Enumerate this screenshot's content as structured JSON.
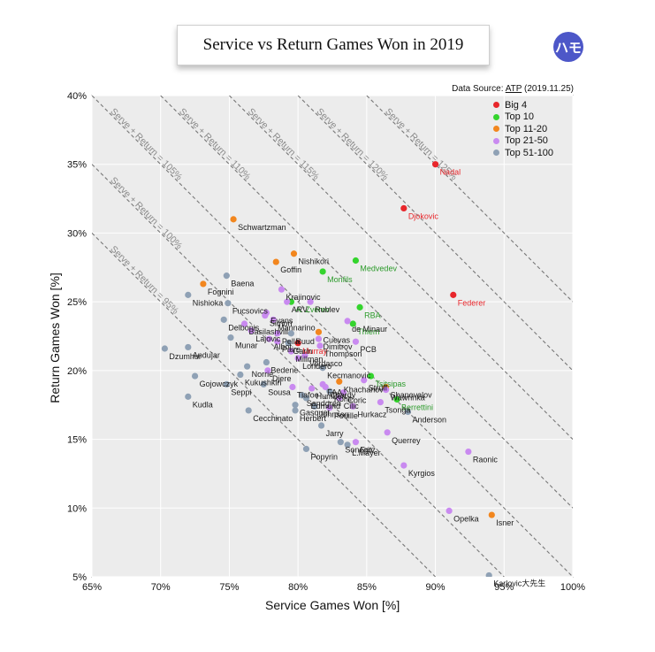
{
  "logo_text": "ハモ",
  "source": {
    "prefix": "Data Source:",
    "name": "ATP",
    "date": "(2019.11.25)"
  },
  "colors": {
    "Big 4": "#e8262b",
    "Top 10": "#34d42d",
    "Top 11-20": "#f2861e",
    "Top 21-50": "#c98af0",
    "Top 51-100": "#8fa1b5"
  },
  "chart_data": {
    "type": "scatter",
    "title": "Service vs Return Games Won in 2019",
    "xlabel": "Service Games Won [%]",
    "ylabel": "Return Games Won [%]",
    "xlim": [
      65,
      100
    ],
    "ylim": [
      5,
      40
    ],
    "xticks": [
      "65%",
      "70%",
      "75%",
      "80%",
      "85%",
      "90%",
      "95%",
      "100%"
    ],
    "yticks": [
      "5%",
      "10%",
      "15%",
      "20%",
      "25%",
      "30%",
      "35%",
      "40%"
    ],
    "grid": true,
    "legend": [
      "Big 4",
      "Top 10",
      "Top 11-20",
      "Top 21-50",
      "Top 51-100"
    ],
    "legend_position": "top-right",
    "diagonals": [
      {
        "sum": 95,
        "label": "Serve + Return = 95%"
      },
      {
        "sum": 100,
        "label": "Serve + Return = 100%"
      },
      {
        "sum": 105,
        "label": "Serve + Return = 105%"
      },
      {
        "sum": 110,
        "label": "Serve + Return = 110%"
      },
      {
        "sum": 115,
        "label": "Serve + Return = 115%"
      },
      {
        "sum": 120,
        "label": "Serve + Return = 120%"
      },
      {
        "sum": 125,
        "label": "Serve + Return = 125%"
      }
    ],
    "points": [
      {
        "name": "Nadal",
        "x": 90.0,
        "y": 35.0,
        "group": "Big 4"
      },
      {
        "name": "Djokovic",
        "x": 87.7,
        "y": 31.8,
        "group": "Big 4"
      },
      {
        "name": "Federer",
        "x": 91.3,
        "y": 25.5,
        "group": "Big 4"
      },
      {
        "name": "Murray",
        "x": 80.0,
        "y": 22.0,
        "group": "Big 4"
      },
      {
        "name": "Medvedev",
        "x": 84.2,
        "y": 28.0,
        "group": "Top 10"
      },
      {
        "name": "Monfils",
        "x": 81.8,
        "y": 27.2,
        "group": "Top 10"
      },
      {
        "name": "A. Zverev",
        "x": 79.5,
        "y": 25.0,
        "group": "Top 10"
      },
      {
        "name": "RBA",
        "x": 84.5,
        "y": 24.6,
        "group": "Top 10"
      },
      {
        "name": "Thiem",
        "x": 84.0,
        "y": 23.4,
        "group": "Top 10"
      },
      {
        "name": "Tsitsipas",
        "x": 85.3,
        "y": 19.6,
        "group": "Top 10"
      },
      {
        "name": "Berrettini",
        "x": 87.2,
        "y": 17.9,
        "group": "Top 10"
      },
      {
        "name": "Schwartzman",
        "x": 75.3,
        "y": 31.0,
        "group": "Top 11-20"
      },
      {
        "name": "Nishikori",
        "x": 79.7,
        "y": 28.5,
        "group": "Top 11-20"
      },
      {
        "name": "Goffin",
        "x": 78.4,
        "y": 27.9,
        "group": "Top 11-20"
      },
      {
        "name": "Fognini",
        "x": 73.1,
        "y": 26.3,
        "group": "Top 11-20"
      },
      {
        "name": "Isner",
        "x": 94.1,
        "y": 9.5,
        "group": "Top 11-20"
      },
      {
        "name": "Shapovalov",
        "x": 86.4,
        "y": 18.8,
        "group": "Top 11-20"
      },
      {
        "name": "Cuevas",
        "x": 81.5,
        "y": 22.8,
        "group": "Top 11-20"
      },
      {
        "name": "Khachanov",
        "x": 83.0,
        "y": 19.2,
        "group": "Top 11-20"
      },
      {
        "name": "Krajinovic",
        "x": 78.8,
        "y": 25.9,
        "group": "Top 21-50"
      },
      {
        "name": "ARV",
        "x": 79.2,
        "y": 25.0,
        "group": "Top 21-50"
      },
      {
        "name": "Rublev",
        "x": 80.9,
        "y": 25.0,
        "group": "Top 21-50"
      },
      {
        "name": "Evans",
        "x": 77.7,
        "y": 24.2,
        "group": "Top 21-50"
      },
      {
        "name": "Simon",
        "x": 77.6,
        "y": 24.0,
        "group": "Top 21-50"
      },
      {
        "name": "Mannarino",
        "x": 78.2,
        "y": 23.7,
        "group": "Top 21-50"
      },
      {
        "name": "de Minaur",
        "x": 83.6,
        "y": 23.6,
        "group": "Top 21-50"
      },
      {
        "name": "Basilashvili",
        "x": 76.1,
        "y": 23.4,
        "group": "Top 21-50"
      },
      {
        "name": "Lajovic",
        "x": 76.6,
        "y": 22.9,
        "group": "Top 21-50"
      },
      {
        "name": "Pella",
        "x": 78.5,
        "y": 22.7,
        "group": "Top 21-50"
      },
      {
        "name": "Albot",
        "x": 77.9,
        "y": 22.3,
        "group": "Top 21-50"
      },
      {
        "name": "Paire",
        "x": 78.5,
        "y": 22.1,
        "group": "Top 21-50"
      },
      {
        "name": "Dimitrov",
        "x": 81.5,
        "y": 22.3,
        "group": "Top 21-50"
      },
      {
        "name": "Thompson",
        "x": 81.6,
        "y": 21.8,
        "group": "Top 21-50"
      },
      {
        "name": "PCB",
        "x": 84.2,
        "y": 22.1,
        "group": "Top 21-50"
      },
      {
        "name": "Millman",
        "x": 79.5,
        "y": 21.4,
        "group": "Top 21-50"
      },
      {
        "name": "Verdasco",
        "x": 80.5,
        "y": 21.1,
        "group": "Top 21-50"
      },
      {
        "name": "Londero",
        "x": 80.0,
        "y": 20.9,
        "group": "Top 21-50"
      },
      {
        "name": "Djere",
        "x": 77.8,
        "y": 20.0,
        "group": "Top 21-50"
      },
      {
        "name": "FAA",
        "x": 81.8,
        "y": 19.0,
        "group": "Top 21-50"
      },
      {
        "name": "Struff",
        "x": 84.8,
        "y": 19.3,
        "group": "Top 21-50"
      },
      {
        "name": "Humbert",
        "x": 81.0,
        "y": 18.7,
        "group": "Top 21-50"
      },
      {
        "name": "Chardy",
        "x": 82.0,
        "y": 18.8,
        "group": "Top 21-50"
      },
      {
        "name": "Coric",
        "x": 83.3,
        "y": 18.4,
        "group": "Top 21-50"
      },
      {
        "name": "Wawrinka",
        "x": 86.4,
        "y": 18.6,
        "group": "Top 21-50"
      },
      {
        "name": "Cilic",
        "x": 83.0,
        "y": 18.0,
        "group": "Top 21-50"
      },
      {
        "name": "Tsonga",
        "x": 86.0,
        "y": 17.7,
        "group": "Top 21-50"
      },
      {
        "name": "Hurkacz",
        "x": 84.0,
        "y": 17.4,
        "group": "Top 21-50"
      },
      {
        "name": "Pouille",
        "x": 82.3,
        "y": 17.3,
        "group": "Top 21-50"
      },
      {
        "name": "Tiafoe",
        "x": 79.6,
        "y": 18.8,
        "group": "Top 21-50"
      },
      {
        "name": "Querrey",
        "x": 86.5,
        "y": 15.5,
        "group": "Top 21-50"
      },
      {
        "name": "Fritz",
        "x": 84.2,
        "y": 14.8,
        "group": "Top 21-50"
      },
      {
        "name": "Kyrgios",
        "x": 87.7,
        "y": 13.1,
        "group": "Top 21-50"
      },
      {
        "name": "Raonic",
        "x": 92.4,
        "y": 14.1,
        "group": "Top 21-50"
      },
      {
        "name": "Opelka",
        "x": 91.0,
        "y": 9.8,
        "group": "Top 21-50"
      },
      {
        "name": "Baena",
        "x": 74.8,
        "y": 26.9,
        "group": "Top 51-100"
      },
      {
        "name": "Nishioka",
        "x": 72.0,
        "y": 25.5,
        "group": "Top 51-100"
      },
      {
        "name": "Fucsovics",
        "x": 74.9,
        "y": 24.9,
        "group": "Top 51-100"
      },
      {
        "name": "Delbonis",
        "x": 74.6,
        "y": 23.7,
        "group": "Top 51-100"
      },
      {
        "name": "Munar",
        "x": 75.1,
        "y": 22.4,
        "group": "Top 51-100"
      },
      {
        "name": "Ruud",
        "x": 79.5,
        "y": 22.7,
        "group": "Top 51-100"
      },
      {
        "name": "Garin",
        "x": 79.3,
        "y": 22.0,
        "group": "Top 51-100"
      },
      {
        "name": "Dzumhur",
        "x": 70.3,
        "y": 21.6,
        "group": "Top 51-100"
      },
      {
        "name": "Andujar",
        "x": 72.0,
        "y": 21.7,
        "group": "Top 51-100"
      },
      {
        "name": "Norrie",
        "x": 76.3,
        "y": 20.3,
        "group": "Top 51-100"
      },
      {
        "name": "Bedene",
        "x": 77.7,
        "y": 20.6,
        "group": "Top 51-100"
      },
      {
        "name": "Kecmanovic",
        "x": 81.8,
        "y": 20.2,
        "group": "Top 51-100"
      },
      {
        "name": "Kukushkin",
        "x": 75.8,
        "y": 19.7,
        "group": "Top 51-100"
      },
      {
        "name": "Gojowczyk",
        "x": 72.5,
        "y": 19.6,
        "group": "Top 51-100"
      },
      {
        "name": "Seppi",
        "x": 74.8,
        "y": 19.0,
        "group": "Top 51-100"
      },
      {
        "name": "Sousa",
        "x": 77.5,
        "y": 19.0,
        "group": "Top 51-100"
      },
      {
        "name": "Kohli",
        "x": 82.3,
        "y": 18.5,
        "group": "Top 51-100"
      },
      {
        "name": "Sandgren",
        "x": 80.3,
        "y": 18.2,
        "group": "Top 51-100"
      },
      {
        "name": "Edmund",
        "x": 80.6,
        "y": 18.0,
        "group": "Top 51-100"
      },
      {
        "name": "Gasquet",
        "x": 79.8,
        "y": 17.5,
        "group": "Top 51-100"
      },
      {
        "name": "Johnson",
        "x": 81.2,
        "y": 17.4,
        "group": "Top 51-100"
      },
      {
        "name": "Kudla",
        "x": 72.0,
        "y": 18.1,
        "group": "Top 51-100"
      },
      {
        "name": "Herbert",
        "x": 79.8,
        "y": 17.1,
        "group": "Top 51-100"
      },
      {
        "name": "Cecchinato",
        "x": 76.4,
        "y": 17.1,
        "group": "Top 51-100"
      },
      {
        "name": "Anderson",
        "x": 88.0,
        "y": 17.0,
        "group": "Top 51-100"
      },
      {
        "name": "Jarry",
        "x": 81.7,
        "y": 16.0,
        "group": "Top 51-100"
      },
      {
        "name": "Sonego",
        "x": 83.1,
        "y": 14.8,
        "group": "Top 51-100"
      },
      {
        "name": "L.Mayer",
        "x": 83.6,
        "y": 14.6,
        "group": "Top 51-100"
      },
      {
        "name": "Popyrin",
        "x": 80.6,
        "y": 14.3,
        "group": "Top 51-100"
      },
      {
        "name": "Karlovic大先生",
        "x": 93.9,
        "y": 5.1,
        "group": "Top 51-100"
      }
    ]
  }
}
